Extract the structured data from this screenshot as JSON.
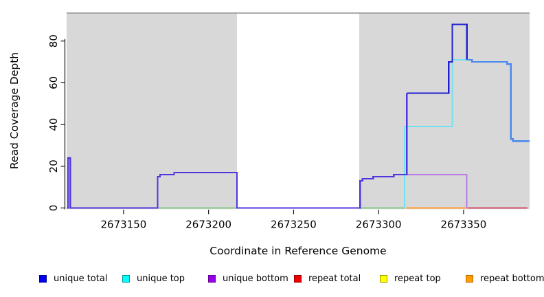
{
  "chart_data": {
    "type": "line",
    "subtype": "step-coverage",
    "title": "",
    "xlabel": "Coordinate in Reference Genome",
    "ylabel": "Read Coverage Depth",
    "xlim": [
      2673116.5,
      2673388.8
    ],
    "ylim": [
      0,
      93.4
    ],
    "x_ticks": [
      2673150,
      2673200,
      2673250,
      2673300,
      2673350
    ],
    "y_ticks": [
      0,
      20,
      40,
      60,
      80
    ],
    "grid": false,
    "panel": {
      "top_border_color": "#9e9e9e",
      "axis_color": "#111111",
      "shaded_color": "#d8d8d8"
    },
    "background_regions": [
      {
        "name": "shaded-region-left",
        "from": 2673116.5,
        "to": 2673216.7,
        "color": "#d8d8d8"
      },
      {
        "name": "unshaded-gap-region",
        "from": 2673216.7,
        "to": 2673288.6,
        "color": "#ffffff"
      },
      {
        "name": "shaded-region-right",
        "from": 2673288.6,
        "to": 2673388.8,
        "color": "#d8d8d8"
      }
    ],
    "legend": {
      "position": "bottom",
      "entries": [
        {
          "label": "unique total",
          "fill": "#0000ee",
          "border": "#000099"
        },
        {
          "label": "unique top",
          "fill": "#00ffff",
          "border": "#009999"
        },
        {
          "label": "unique bottom",
          "fill": "#9a00e6",
          "border": "#660099"
        },
        {
          "label": "repeat total",
          "fill": "#ee0000",
          "border": "#990000"
        },
        {
          "label": "repeat top",
          "fill": "#ffff00",
          "border": "#999900"
        },
        {
          "label": "repeat bottom",
          "fill": "#ff9d00",
          "border": "#b36b00"
        }
      ]
    },
    "series_segments": [
      {
        "name": "repeat-bottom-left-edge-tick",
        "color": "#e0a24e",
        "width": 1.8,
        "points": [
          [
            2673116.5,
            0
          ],
          [
            2673118.4,
            0
          ]
        ]
      },
      {
        "name": "top-strands-baseline-left",
        "color": "#8cc98c",
        "width": 1.6,
        "points": [
          [
            2673170,
            0
          ],
          [
            2673216.7,
            0
          ]
        ]
      },
      {
        "name": "top-strands-baseline-right",
        "color": "#8cc98c",
        "width": 1.6,
        "points": [
          [
            2673289.4,
            0
          ],
          [
            2673315.4,
            0
          ]
        ]
      },
      {
        "name": "repeat-bottom-baseline",
        "color": "#ff9d2e",
        "width": 2.0,
        "points": [
          [
            2673316.2,
            0
          ],
          [
            2673352.5,
            0
          ]
        ]
      },
      {
        "name": "repeat-total-baseline",
        "color": "#d34f6e",
        "width": 1.8,
        "points": [
          [
            2673352.5,
            0
          ],
          [
            2673387.6,
            0
          ]
        ]
      },
      {
        "name": "unique-bottom",
        "color": "#b87ae8",
        "width": 2.0,
        "points": [
          [
            2673316.6,
            16
          ],
          [
            2673351.9,
            16
          ],
          [
            2673351.9,
            0
          ]
        ]
      },
      {
        "name": "unique-top",
        "color": "#6ee3ef",
        "width": 2.0,
        "points": [
          [
            2673315.2,
            0
          ],
          [
            2673315.2,
            39
          ],
          [
            2673343.3,
            39
          ],
          [
            2673343.3,
            71
          ],
          [
            2673351.9,
            71
          ]
        ]
      },
      {
        "name": "unique-total-low-coverage",
        "color": "#4f36dd",
        "width": 2.2,
        "points": [
          [
            2673116.8,
            0
          ],
          [
            2673117.3,
            0
          ],
          [
            2673117.3,
            24
          ],
          [
            2673118.6,
            24
          ],
          [
            2673118.6,
            0
          ],
          [
            2673170,
            0
          ],
          [
            2673170,
            15
          ],
          [
            2673171.4,
            15
          ],
          [
            2673171.4,
            16
          ],
          [
            2673179.7,
            16
          ],
          [
            2673179.7,
            17
          ],
          [
            2673216.7,
            17
          ],
          [
            2673216.7,
            0
          ],
          [
            2673288.6,
            0
          ],
          [
            2673289.1,
            0
          ],
          [
            2673289.1,
            13
          ],
          [
            2673290.5,
            13
          ],
          [
            2673290.5,
            14
          ],
          [
            2673296.8,
            14
          ],
          [
            2673296.8,
            15
          ],
          [
            2673308.9,
            15
          ],
          [
            2673308.9,
            16
          ],
          [
            2673316.6,
            16
          ],
          [
            2673316.6,
            55
          ]
        ]
      },
      {
        "name": "unique-total-peak",
        "color": "#2020d0",
        "width": 2.2,
        "points": [
          [
            2673316.6,
            55
          ],
          [
            2673341.2,
            55
          ],
          [
            2673341.2,
            70
          ],
          [
            2673343.3,
            70
          ],
          [
            2673343.3,
            88
          ],
          [
            2673351.9,
            88
          ],
          [
            2673351.9,
            71
          ]
        ]
      },
      {
        "name": "unique-total-top-merged",
        "color": "#4787ef",
        "width": 2.4,
        "points": [
          [
            2673351.9,
            71
          ],
          [
            2673355,
            71
          ],
          [
            2673355,
            70
          ],
          [
            2673375.6,
            70
          ],
          [
            2673375.6,
            69
          ],
          [
            2673377.8,
            69
          ],
          [
            2673377.8,
            33
          ],
          [
            2673379,
            33
          ],
          [
            2673379,
            32
          ],
          [
            2673388.8,
            32
          ]
        ]
      }
    ]
  }
}
